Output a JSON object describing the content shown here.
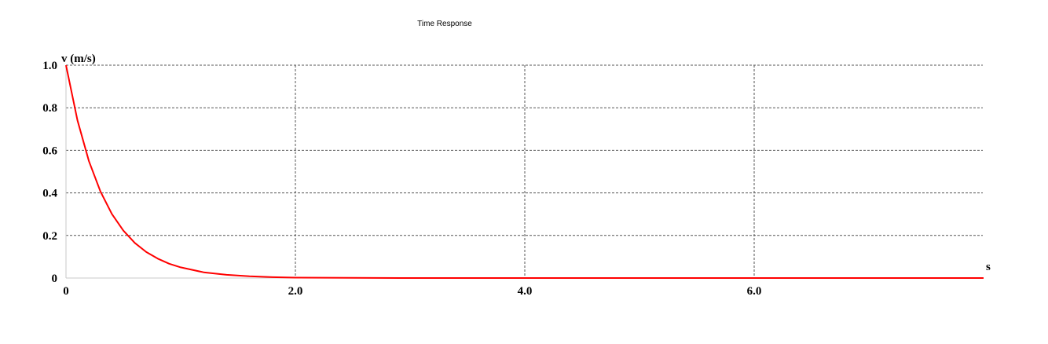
{
  "chart_data": {
    "type": "line",
    "title": "Time Response",
    "xlabel": "s",
    "ylabel": "v (m/s)",
    "xlim": [
      0,
      8.0
    ],
    "ylim": [
      0,
      1.0
    ],
    "grid": true,
    "x_ticks": [
      {
        "value": 0,
        "label": "0"
      },
      {
        "value": 2.0,
        "label": "2.0"
      },
      {
        "value": 4.0,
        "label": "4.0"
      },
      {
        "value": 6.0,
        "label": "6.0"
      }
    ],
    "y_ticks": [
      {
        "value": 0,
        "label": "0"
      },
      {
        "value": 0.2,
        "label": "0.2"
      },
      {
        "value": 0.4,
        "label": "0.4"
      },
      {
        "value": 0.6,
        "label": "0.6"
      },
      {
        "value": 0.8,
        "label": "0.8"
      },
      {
        "value": 1.0,
        "label": "1.0"
      }
    ],
    "series": [
      {
        "color": "#ff0000",
        "x": [
          0,
          0.1,
          0.2,
          0.3,
          0.4,
          0.5,
          0.6,
          0.7,
          0.8,
          0.9,
          1.0,
          1.2,
          1.4,
          1.6,
          1.8,
          2.0,
          3.0,
          4.0,
          5.0,
          6.0,
          7.0,
          8.0
        ],
        "y": [
          1.0,
          0.741,
          0.549,
          0.407,
          0.301,
          0.223,
          0.165,
          0.122,
          0.091,
          0.067,
          0.05,
          0.027,
          0.015,
          0.008,
          0.004,
          0.002,
          0.0,
          0.0,
          0.0,
          0.0,
          0.0,
          0.0
        ]
      }
    ]
  }
}
